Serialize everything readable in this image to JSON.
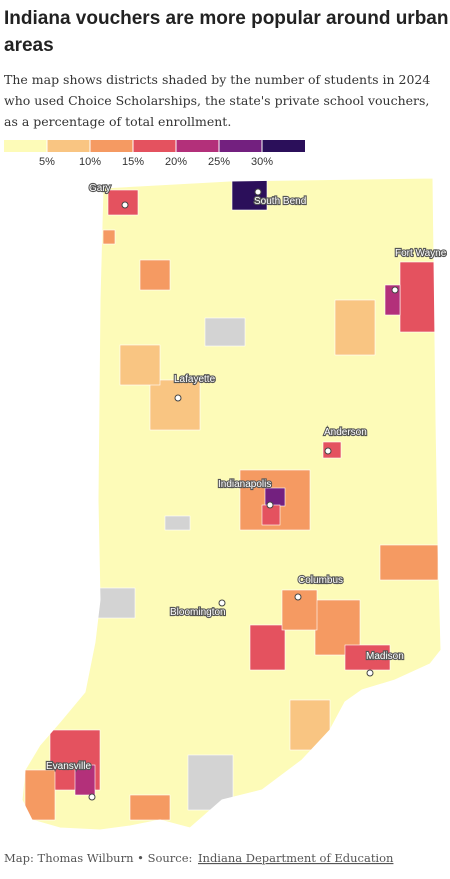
{
  "header": {
    "title_lines": [
      "Indiana vouchers are more popular around urban",
      "areas"
    ],
    "subtitle_lines": [
      "The map shows districts shaded by the number of students in 2024",
      "who used Choice Scholarships, the state's private school vouchers,",
      "as a percentage of total enrollment."
    ]
  },
  "legend": {
    "colors": [
      "#fdfbb8",
      "#f9c582",
      "#f59a62",
      "#e4525f",
      "#b3307a",
      "#73207f",
      "#2b0f5a"
    ],
    "ticks": [
      {
        "value": 5,
        "label": "5%"
      },
      {
        "value": 10,
        "label": "10%"
      },
      {
        "value": 15,
        "label": "15%"
      },
      {
        "value": 20,
        "label": "20%"
      },
      {
        "value": 25,
        "label": "25%"
      },
      {
        "value": 30,
        "label": "30%"
      }
    ],
    "no_data_color": "#d3d3d3"
  },
  "districts": {
    "values": [
      32,
      17,
      14,
      22,
      18,
      17,
      27,
      18,
      12,
      12,
      17,
      12,
      13,
      18,
      18,
      13,
      22,
      12,
      8,
      8,
      8,
      12,
      9,
      null,
      null,
      null,
      null
    ]
  },
  "cities": [
    "Gary",
    "South Bend",
    "Fort Wayne",
    "Lafayette",
    "Anderson",
    "Indianapolis",
    "Columbus",
    "Bloomington",
    "Madison",
    "Evansville"
  ],
  "footer": {
    "credit": "Map: Thomas Wilburn • Source: ",
    "source_link": "Indiana Department of Education"
  }
}
